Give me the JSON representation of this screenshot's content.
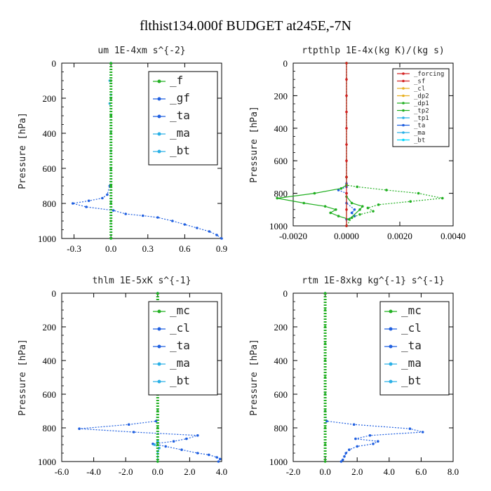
{
  "figure_title": "flthist134.000f  BUDGET at245E,-7N",
  "colors": {
    "green": "#22b022",
    "blue": "#1f5fe0",
    "cyan": "#2ab0e6",
    "red": "#d42020"
  },
  "chart_data": [
    {
      "type": "line",
      "title": "um  1E-4xm s^{-2}",
      "ylabel": "Pressure [hPa]",
      "xlim": [
        -0.4,
        0.9
      ],
      "ylim": [
        1000,
        0
      ],
      "xticks": [
        -0.3,
        0.0,
        0.3,
        0.6,
        0.9
      ],
      "xtick_labels": [
        "-0.3",
        "0.0",
        "0.3",
        "0.6",
        "0.9"
      ],
      "yticks": [
        0,
        200,
        400,
        600,
        800,
        1000
      ],
      "ytick_labels": [
        "0",
        "200",
        "400",
        "600",
        "800",
        "1000"
      ],
      "legend": {
        "position": "top-right",
        "entries": [
          "_f",
          "_gf",
          "_ta",
          "_ma",
          "_bt"
        ]
      },
      "series": [
        {
          "name": "_ta",
          "color": "#1f5fe0",
          "dash": "2,2",
          "x": [
            0,
            0,
            0,
            0,
            0,
            0,
            0,
            -0.01,
            -0.03,
            -0.07,
            -0.18,
            -0.31,
            -0.2,
            0.02,
            0.12,
            0.26,
            0.38,
            0.5,
            0.6,
            0.7,
            0.8,
            0.86,
            0.9
          ],
          "y": [
            0,
            100,
            200,
            300,
            400,
            500,
            600,
            700,
            750,
            770,
            785,
            800,
            820,
            840,
            860,
            870,
            880,
            900,
            920,
            940,
            960,
            980,
            1000
          ]
        },
        {
          "name": "_gf",
          "color": "#2ab0e6",
          "dash": "2,2",
          "x": [
            0,
            -0.01,
            0,
            -0.01,
            0,
            0,
            0,
            0,
            0,
            0,
            0
          ],
          "y": [
            0,
            100,
            180,
            230,
            300,
            400,
            500,
            600,
            700,
            800,
            1000
          ]
        },
        {
          "name": "_f",
          "color": "#22b022",
          "dash": "2,2",
          "x": [
            0,
            0,
            0,
            0,
            0,
            0,
            0,
            0,
            0,
            0,
            0
          ],
          "y": [
            0,
            100,
            200,
            300,
            400,
            500,
            600,
            700,
            800,
            900,
            1000
          ]
        }
      ]
    },
    {
      "type": "line",
      "title": "rtpthlp  1E-4x(kg K)/(kg s)",
      "ylabel": "Pressure [hPa]",
      "xlim": [
        -0.002,
        0.004
      ],
      "ylim": [
        1000,
        0
      ],
      "xticks": [
        -0.002,
        0.0,
        0.002,
        0.004
      ],
      "xtick_labels": [
        "-0.0020",
        "0.0000",
        "0.0020",
        "0.0040"
      ],
      "yticks": [
        0,
        200,
        400,
        600,
        800,
        1000
      ],
      "ytick_labels": [
        "0",
        "200",
        "400",
        "600",
        "800",
        "1000"
      ],
      "legend": {
        "position": "top-right",
        "entries": [
          "_forcing",
          "_sf",
          "_cl",
          "_dp2",
          "_dp1",
          "_tp2",
          "_tp1",
          "_ta",
          "_ma",
          "_bt"
        ]
      },
      "series": [
        {
          "name": "_ta",
          "color": "#1f5fe0",
          "dash": "2,2",
          "x": [
            0,
            0,
            0,
            -0.0003,
            0,
            0,
            0.0003,
            0.0002,
            0.0003,
            0,
            0
          ],
          "y": [
            0,
            740,
            760,
            780,
            800,
            860,
            900,
            920,
            940,
            960,
            1000
          ]
        },
        {
          "name": "_tp1",
          "color": "#22b022",
          "dash": "",
          "x": [
            0,
            0,
            0,
            -0.0002,
            -0.0012,
            -0.0026,
            -0.0016,
            -0.0008,
            -0.0004,
            -0.0006,
            -0.0003,
            0.0001,
            0.0005,
            0.0006,
            0.0002,
            0,
            0
          ],
          "y": [
            0,
            700,
            750,
            770,
            800,
            830,
            860,
            880,
            900,
            920,
            940,
            960,
            900,
            880,
            860,
            820,
            1000
          ]
        },
        {
          "name": "_tp2",
          "color": "#22b022",
          "dash": "2,2",
          "x": [
            0,
            0,
            0,
            0.0004,
            0.0015,
            0.0027,
            0.0036,
            0.0024,
            0.0012,
            0.0008,
            0.001,
            0.0005,
            0.0002,
            0
          ],
          "y": [
            0,
            700,
            750,
            760,
            780,
            800,
            830,
            850,
            870,
            890,
            910,
            930,
            950,
            1000
          ]
        },
        {
          "name": "_forcing",
          "color": "#d42020",
          "dash": "",
          "x": [
            0,
            0,
            0,
            0,
            0,
            0,
            0,
            0,
            0,
            0,
            0
          ],
          "y": [
            0,
            100,
            200,
            300,
            400,
            500,
            600,
            700,
            800,
            900,
            1000
          ]
        }
      ]
    },
    {
      "type": "line",
      "title": "thlm  1E-5xK s^{-1}",
      "ylabel": "Pressure [hPa]",
      "xlim": [
        -6.0,
        4.0
      ],
      "ylim": [
        1000,
        0
      ],
      "xticks": [
        -6.0,
        -4.0,
        -2.0,
        0.0,
        2.0,
        4.0
      ],
      "xtick_labels": [
        "-6.0",
        "-4.0",
        "-2.0",
        "0.0",
        "2.0",
        "4.0"
      ],
      "yticks": [
        0,
        200,
        400,
        600,
        800,
        1000
      ],
      "ytick_labels": [
        "0",
        "200",
        "400",
        "600",
        "800",
        "1000"
      ],
      "legend": {
        "position": "top-right",
        "entries": [
          "_mc",
          "_cl",
          "_ta",
          "_ma",
          "_bt"
        ]
      },
      "series": [
        {
          "name": "_cl",
          "color": "#1f5fe0",
          "dash": "2,2",
          "x": [
            0,
            0,
            0,
            -0.1,
            -1.8,
            -4.9,
            -1.5,
            2.5,
            1.8,
            1.0,
            -0.3,
            0.5,
            1.5,
            2.5,
            3.2,
            3.7,
            3.9,
            3.8
          ],
          "y": [
            0,
            600,
            700,
            760,
            780,
            805,
            825,
            845,
            865,
            880,
            895,
            910,
            930,
            950,
            960,
            975,
            985,
            1000
          ]
        },
        {
          "name": "_ta",
          "color": "#2ab0e6",
          "dash": "2,2",
          "x": [
            0,
            0,
            0,
            -0.2,
            0.1,
            0,
            0
          ],
          "y": [
            0,
            800,
            880,
            900,
            920,
            940,
            1000
          ]
        },
        {
          "name": "_mc",
          "color": "#22b022",
          "dash": "2,2",
          "x": [
            0,
            0,
            0,
            0,
            0,
            0,
            0,
            0,
            0,
            0,
            0
          ],
          "y": [
            0,
            100,
            200,
            300,
            400,
            500,
            600,
            700,
            800,
            900,
            1000
          ]
        }
      ]
    },
    {
      "type": "line",
      "title": "rtm  1E-8xkg kg^{-1} s^{-1}",
      "ylabel": "Pressure [hPa]",
      "xlim": [
        -2.0,
        8.0
      ],
      "ylim": [
        1000,
        0
      ],
      "xticks": [
        -2.0,
        0.0,
        2.0,
        4.0,
        6.0,
        8.0
      ],
      "xtick_labels": [
        "-2.0",
        "0.0",
        "2.0",
        "4.0",
        "6.0",
        "8.0"
      ],
      "yticks": [
        0,
        200,
        400,
        600,
        800,
        1000
      ],
      "ytick_labels": [
        "0",
        "200",
        "400",
        "600",
        "800",
        "1000"
      ],
      "legend": {
        "position": "top-right",
        "entries": [
          "_mc",
          "_cl",
          "_ta",
          "_ma",
          "_bt"
        ]
      },
      "series": [
        {
          "name": "_cl",
          "color": "#1f5fe0",
          "dash": "2,2",
          "x": [
            0,
            0,
            0,
            0.1,
            1.8,
            5.3,
            6.1,
            2.8,
            1.9,
            3.3,
            3.0,
            2.0,
            1.5,
            1.3,
            1.2,
            1.1,
            1.0
          ],
          "y": [
            0,
            600,
            700,
            760,
            780,
            805,
            825,
            845,
            865,
            880,
            895,
            910,
            930,
            950,
            970,
            990,
            1000
          ]
        },
        {
          "name": "_mc",
          "color": "#22b022",
          "dash": "2,2",
          "x": [
            0,
            0,
            0,
            0,
            0,
            0,
            0,
            0,
            0,
            0,
            0
          ],
          "y": [
            0,
            100,
            200,
            300,
            400,
            500,
            600,
            700,
            800,
            900,
            1000
          ]
        }
      ]
    }
  ]
}
